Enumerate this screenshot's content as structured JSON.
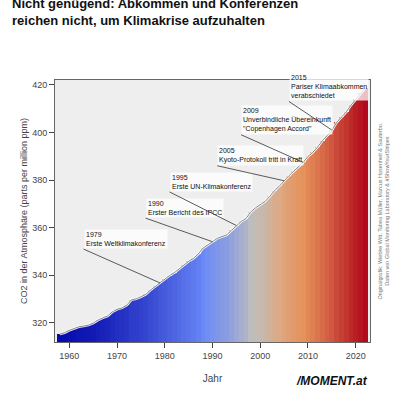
{
  "chart_data": {
    "type": "bar",
    "title": "Nicht genügend: Abkommen und Konferenzen\nreichen nicht, um Klimakrise aufzuhalten",
    "x_label": "Jahr",
    "y_label": "CO2 in der Atmosphäre (parts per million ppm)",
    "xlim": [
      1957,
      2023
    ],
    "ylim": [
      312,
      422
    ],
    "xticks": [
      1960,
      1970,
      1980,
      1990,
      2000,
      2010,
      2020
    ],
    "yticks": [
      320,
      340,
      360,
      380,
      400,
      420
    ],
    "grid": false,
    "x": [
      1958,
      1959,
      1960,
      1961,
      1962,
      1963,
      1964,
      1965,
      1966,
      1967,
      1968,
      1969,
      1970,
      1971,
      1972,
      1973,
      1974,
      1975,
      1976,
      1977,
      1978,
      1979,
      1980,
      1981,
      1982,
      1983,
      1984,
      1985,
      1986,
      1987,
      1988,
      1989,
      1990,
      1991,
      1992,
      1993,
      1994,
      1995,
      1996,
      1997,
      1998,
      1999,
      2000,
      2001,
      2002,
      2003,
      2004,
      2005,
      2006,
      2007,
      2008,
      2009,
      2010,
      2011,
      2012,
      2013,
      2014,
      2015,
      2016,
      2017,
      2018,
      2019,
      2020,
      2021,
      2022
    ],
    "series": [
      {
        "type": "bar",
        "values": [
          315.3,
          315.9,
          316.9,
          317.6,
          318.4,
          318.7,
          319.1,
          319.9,
          321.2,
          322.1,
          322.9,
          324.6,
          325.7,
          326.3,
          327.4,
          329.7,
          330.1,
          331.0,
          332.0,
          333.8,
          335.4,
          336.8,
          338.5,
          339.9,
          341.1,
          342.8,
          344.4,
          345.9,
          347.1,
          348.9,
          351.4,
          352.9,
          354.1,
          355.5,
          356.3,
          357.0,
          358.9,
          360.9,
          362.6,
          363.8,
          366.6,
          368.3,
          369.5,
          371.0,
          373.1,
          375.6,
          377.4,
          379.7,
          381.8,
          383.7,
          385.6,
          387.4,
          389.9,
          391.6,
          393.8,
          396.5,
          398.6,
          400.8,
          404.2,
          406.5,
          408.5,
          411.4,
          413.9,
          416.4,
          418.6
        ]
      },
      {
        "type": "line",
        "values": [
          315.3,
          315.9,
          316.9,
          317.6,
          318.4,
          318.7,
          319.1,
          319.9,
          321.2,
          322.1,
          322.9,
          324.6,
          325.7,
          326.3,
          327.4,
          329.7,
          330.1,
          331.0,
          332.0,
          333.8,
          335.4,
          336.8,
          338.5,
          339.9,
          341.1,
          342.8,
          344.4,
          345.9,
          347.1,
          348.9,
          351.4,
          352.9,
          354.1,
          355.5,
          356.3,
          357.0,
          358.9,
          360.9,
          362.6,
          363.8,
          366.6,
          368.3,
          369.5,
          371.0,
          373.1,
          375.6,
          377.4,
          379.7,
          381.8,
          383.7,
          385.6,
          387.4,
          389.9,
          391.6,
          393.8,
          396.5,
          398.6,
          400.8,
          404.2,
          406.5,
          408.5,
          411.4,
          413.9,
          416.4,
          418.6
        ]
      }
    ],
    "annotations": [
      {
        "text": "1979\nErste Weltklimakonferenz",
        "x": 1979,
        "y": 336.8,
        "text_x": 1963,
        "text_y": 351
      },
      {
        "text": "1990\nErster Bericht des IPCC",
        "x": 1990,
        "y": 354.1,
        "text_x": 1976,
        "text_y": 364
      },
      {
        "text": "1995\nErste UN-Klimakonferenz",
        "x": 1995,
        "y": 360.9,
        "text_x": 1981,
        "text_y": 375
      },
      {
        "text": "2005\nKyoto-Protokoll tritt in Kraft",
        "x": 2005,
        "y": 379.7,
        "text_x": 1991,
        "text_y": 386
      },
      {
        "text": "2009\nUnverbindliche Übereinkunft\n\"Copenhagen Accord\"",
        "x": 2009,
        "y": 387.4,
        "text_x": 1996,
        "text_y": 399
      },
      {
        "text": "2015\nPariser Klimaabkommen\nverabschiedet",
        "x": 2015,
        "y": 401.0,
        "text_x": 2006,
        "text_y": 413
      }
    ],
    "credit": "Originalgrafik: Wiebke Witt, Tabea Müller, Marcus Hasenheit & Sauterbo.\nDaten von Global Monitoring Laboratory & #ShowYourStripes",
    "logo": "/MOMENT.at"
  }
}
